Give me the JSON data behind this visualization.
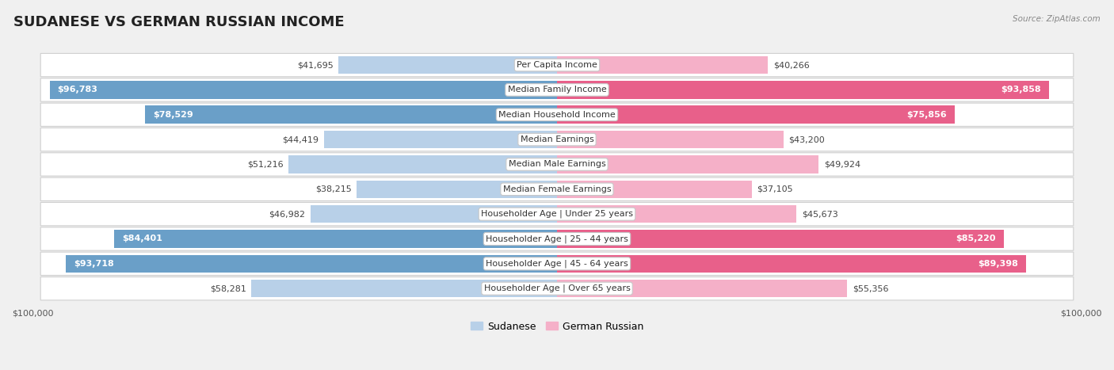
{
  "title": "SUDANESE VS GERMAN RUSSIAN INCOME",
  "source": "Source: ZipAtlas.com",
  "categories": [
    "Per Capita Income",
    "Median Family Income",
    "Median Household Income",
    "Median Earnings",
    "Median Male Earnings",
    "Median Female Earnings",
    "Householder Age | Under 25 years",
    "Householder Age | 25 - 44 years",
    "Householder Age | 45 - 64 years",
    "Householder Age | Over 65 years"
  ],
  "sudanese_values": [
    41695,
    96783,
    78529,
    44419,
    51216,
    38215,
    46982,
    84401,
    93718,
    58281
  ],
  "german_russian_values": [
    40266,
    93858,
    75856,
    43200,
    49924,
    37105,
    45673,
    85220,
    89398,
    55356
  ],
  "sudanese_labels": [
    "$41,695",
    "$96,783",
    "$78,529",
    "$44,419",
    "$51,216",
    "$38,215",
    "$46,982",
    "$84,401",
    "$93,718",
    "$58,281"
  ],
  "german_russian_labels": [
    "$40,266",
    "$93,858",
    "$75,856",
    "$43,200",
    "$49,924",
    "$37,105",
    "$45,673",
    "$85,220",
    "$89,398",
    "$55,356"
  ],
  "max_value": 100000,
  "color_sudanese_light": "#b8d0e8",
  "color_sudanese_dark": "#6a9fc8",
  "color_german_russian_light": "#f5b0c8",
  "color_german_russian_dark": "#e8608a",
  "background_color": "#f0f0f0",
  "row_bg_color": "#ffffff",
  "row_border_color": "#d0d0d0",
  "label_box_color": "#ffffff",
  "label_box_border": "#c8c8c8",
  "title_fontsize": 13,
  "label_fontsize": 8,
  "category_fontsize": 8,
  "legend_fontsize": 9,
  "axis_label_fontsize": 8,
  "white_text_threshold": 62000
}
